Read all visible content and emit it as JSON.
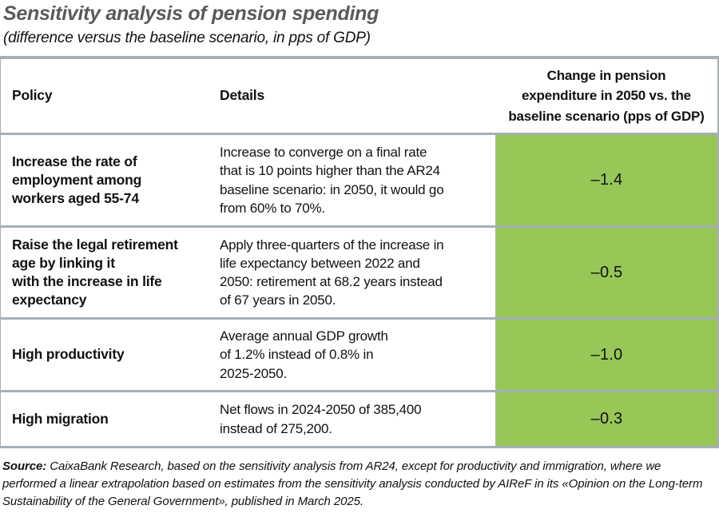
{
  "title": "Sensitivity analysis of pension spending",
  "subtitle": "(difference versus the baseline scenario, in pps of GDP)",
  "table": {
    "headers": {
      "policy": "Policy",
      "details": "Details",
      "change": "Change in pension\nexpenditure in 2050 vs. the\nbaseline scenario (pps of GDP)"
    },
    "rows": [
      {
        "policy": "Increase the rate of\nemployment among\nworkers aged 55-74",
        "details": "Increase to converge on a final rate\nthat is 10 points higher than the AR24\nbaseline scenario: in 2050, it would go\nfrom 60% to 70%.",
        "value": "–1.4"
      },
      {
        "policy": "Raise the legal retirement\nage by linking it\nwith the increase in life\nexpectancy",
        "details": "Apply three-quarters of the increase in\nlife expectancy between 2022 and\n2050: retirement at 68.2 years instead\nof 67 years in 2050.",
        "value": "–0.5"
      },
      {
        "policy": "High productivity",
        "details": "Average annual GDP growth\nof 1.2% instead of 0.8% in\n2025-2050.",
        "value": "–1.0"
      },
      {
        "policy": "High migration",
        "details": "Net flows in 2024-2050 of 385,400\ninstead of 275,200.",
        "value": "–0.3"
      }
    ]
  },
  "source": {
    "label": "Source:",
    "text": " CaixaBank Research, based on the sensitivity analysis from AR24, except for productivity and immigration, where we performed a linear extrapolation based on estimates from the sensitivity analysis conducted by AIReF in its «Opinion on the Long-term Sustainability of the General Government», published in March 2025."
  },
  "colors": {
    "highlight_green": "#97C757",
    "rule_gray": "#A6B0B6",
    "title_gray": "#595A5C"
  },
  "chart_data": {
    "type": "table",
    "title": "Sensitivity analysis of pension spending",
    "subtitle": "(difference versus the baseline scenario, in pps of GDP)",
    "columns": [
      "Policy",
      "Details",
      "Change in pension expenditure in 2050 vs. the baseline scenario (pps of GDP)"
    ],
    "categories": [
      "Increase the rate of employment among workers aged 55-74",
      "Raise the legal retirement age by linking it with the increase in life expectancy",
      "High productivity",
      "High migration"
    ],
    "values": [
      -1.4,
      -0.5,
      -1.0,
      -0.3
    ],
    "unit": "pps of GDP",
    "notes": [
      "Increase to converge on a final rate that is 10 points higher than the AR24 baseline scenario: in 2050, it would go from 60% to 70%.",
      "Apply three-quarters of the increase in life expectancy between 2022 and 2050: retirement at 68.2 years instead of 67 years in 2050.",
      "Average annual GDP growth of 1.2% instead of 0.8% in 2025-2050.",
      "Net flows in 2024-2050 of 385,400 instead of 275,200."
    ]
  }
}
